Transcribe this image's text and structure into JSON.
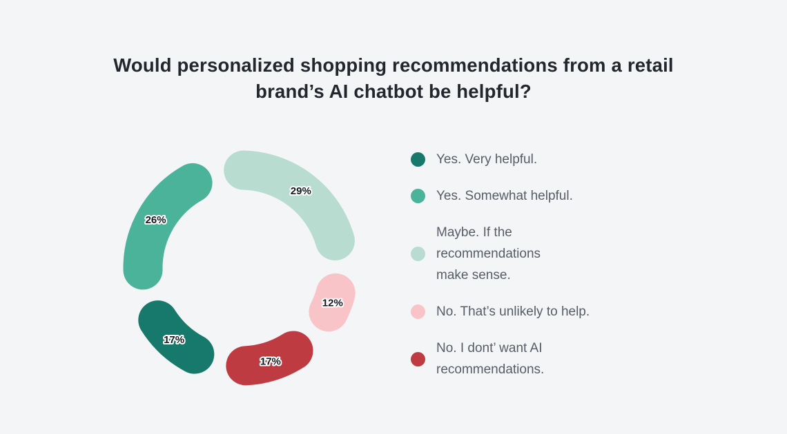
{
  "chart_data": {
    "type": "pie",
    "subtype": "donut",
    "title": "Would personalized shopping recommendations from a retail\nbrand’s AI chatbot be helpful?",
    "value_suffix": "%",
    "start_angle_deg": -14,
    "clockwise": true,
    "legend_position": "right",
    "segments": [
      {
        "label": "Yes. Very helpful.",
        "value": 17,
        "color": "#17786c"
      },
      {
        "label": "Yes. Somewhat helpful.",
        "value": 26,
        "color": "#4bb39a"
      },
      {
        "label": "Maybe. If the recommendations make sense.",
        "display_label": "Maybe. If the\nrecommendations\nmake sense.",
        "value": 29,
        "color": "#b8dccf"
      },
      {
        "label": "No. That’s unlikely to help.",
        "value": 12,
        "color": "#f9c4c7"
      },
      {
        "label": "No. I dont’ want AI recommendations.",
        "display_label": "No. I dont’ want AI\nrecommendations.",
        "value": 17,
        "color": "#bf3b42"
      }
    ],
    "draw_order": [
      2,
      3,
      4,
      0,
      1
    ]
  },
  "colors": {
    "background": "#f4f5f6",
    "title_text": "#22272e",
    "legend_text": "#565d66",
    "value_label_text": "#15191e",
    "value_label_outline": "#ffffff"
  }
}
